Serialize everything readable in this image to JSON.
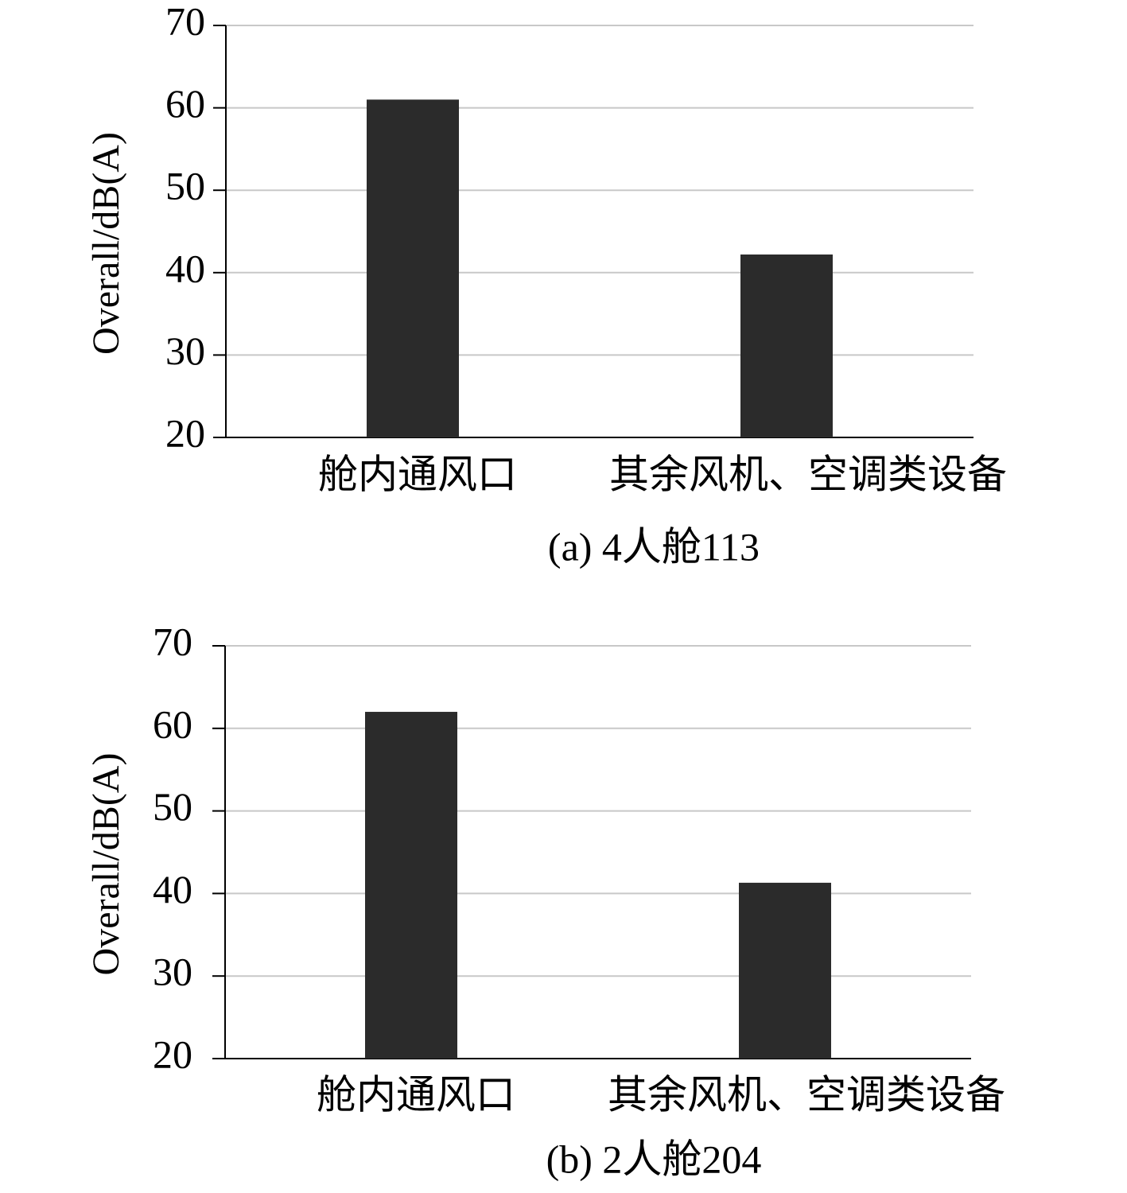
{
  "chart_data": [
    {
      "type": "bar",
      "caption": "(a) 4人舱113",
      "ylabel": "Overall/dB(A)",
      "categories": [
        "舱内通风口",
        "其余风机、空调类设备"
      ],
      "values": [
        61.0,
        42.2
      ],
      "color": "#2b2b2b",
      "ylim": [
        20,
        70
      ],
      "yticks": [
        20,
        30,
        40,
        50,
        60,
        70
      ],
      "grid": true
    },
    {
      "type": "bar",
      "caption": "(b) 2人舱204",
      "ylabel": "Overall/dB(A)",
      "categories": [
        "舱内通风口",
        "其余风机、空调类设备"
      ],
      "values": [
        62.0,
        41.3
      ],
      "color": "#2b2b2b",
      "ylim": [
        20,
        70
      ],
      "yticks": [
        20,
        30,
        40,
        50,
        60,
        70
      ],
      "grid": true
    }
  ]
}
